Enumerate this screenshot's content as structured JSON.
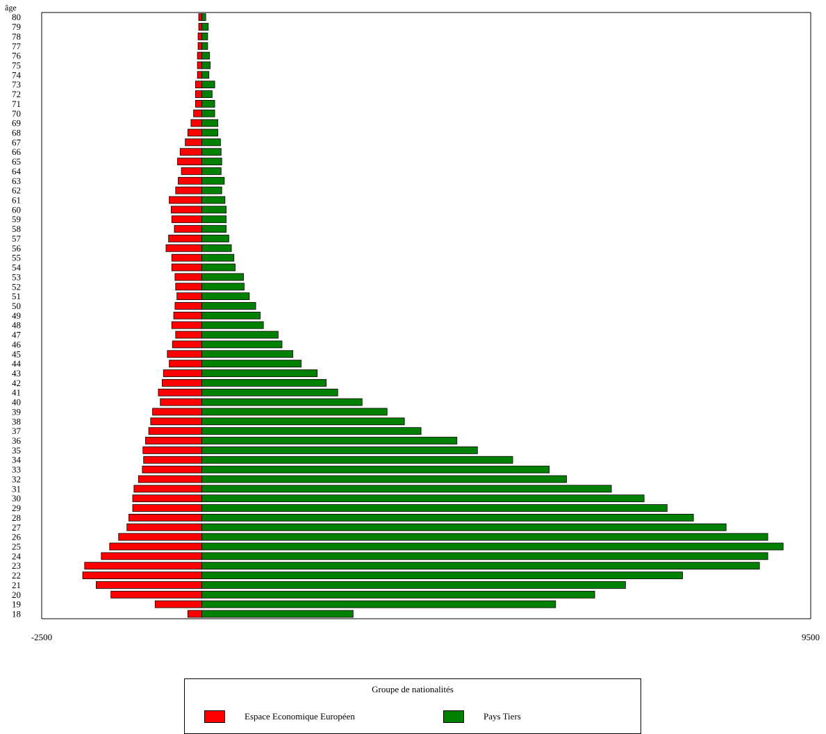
{
  "chart_data": {
    "type": "bar",
    "orientation": "horizontal",
    "layout": "population-pyramid",
    "ylabel": "âge",
    "xlim": [
      -2500,
      9500
    ],
    "x_tick_labels": [
      "-2500",
      "9500"
    ],
    "categories": [
      18,
      19,
      20,
      21,
      22,
      23,
      24,
      25,
      26,
      27,
      28,
      29,
      30,
      31,
      32,
      33,
      34,
      35,
      36,
      37,
      38,
      39,
      40,
      41,
      42,
      43,
      44,
      45,
      46,
      47,
      48,
      49,
      50,
      51,
      52,
      53,
      54,
      55,
      56,
      57,
      58,
      59,
      60,
      61,
      62,
      63,
      64,
      65,
      66,
      67,
      68,
      69,
      70,
      71,
      72,
      73,
      74,
      75,
      76,
      77,
      78,
      79,
      80
    ],
    "series": [
      {
        "name": "Espace Economique Européen",
        "color": "#ff0000",
        "values": [
          -220,
          -730,
          -1420,
          -1650,
          -1860,
          -1830,
          -1570,
          -1440,
          -1300,
          -1170,
          -1140,
          -1080,
          -1080,
          -1060,
          -990,
          -930,
          -910,
          -920,
          -880,
          -830,
          -800,
          -770,
          -650,
          -680,
          -620,
          -600,
          -510,
          -540,
          -460,
          -410,
          -470,
          -440,
          -420,
          -390,
          -410,
          -420,
          -470,
          -470,
          -560,
          -520,
          -430,
          -470,
          -480,
          -510,
          -410,
          -370,
          -320,
          -380,
          -340,
          -260,
          -220,
          -170,
          -130,
          -100,
          -100,
          -100,
          -70,
          -70,
          -70,
          -60,
          -60,
          -50,
          -50
        ]
      },
      {
        "name": "Pays Tiers",
        "color": "#008000",
        "values": [
          2360,
          5520,
          6130,
          6610,
          7500,
          8700,
          8830,
          9070,
          8830,
          8180,
          7670,
          7260,
          6900,
          6390,
          5690,
          5420,
          4850,
          4300,
          3980,
          3420,
          3160,
          2890,
          2500,
          2120,
          1940,
          1800,
          1550,
          1420,
          1250,
          1190,
          960,
          910,
          840,
          740,
          660,
          650,
          520,
          500,
          460,
          420,
          380,
          380,
          380,
          360,
          310,
          350,
          300,
          310,
          300,
          290,
          250,
          250,
          200,
          200,
          160,
          200,
          110,
          130,
          120,
          90,
          90,
          100,
          60
        ]
      }
    ],
    "legend": {
      "title": "Groupe de nationalités",
      "position": "bottom-center"
    }
  }
}
